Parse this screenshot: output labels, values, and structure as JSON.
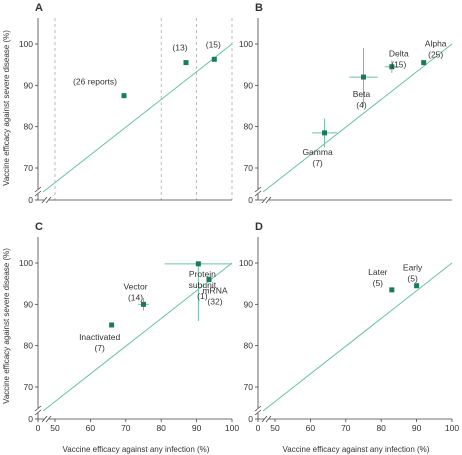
{
  "colors": {
    "marker": "#1a7a5a",
    "identity_line": "#6cc1a0",
    "axis": "#444444",
    "guide": "#aaaaaa",
    "errorbar": "#6cc1a0"
  },
  "axes": {
    "ylabel": "Vaccine efficacy against severe disease (%)",
    "xlabel": "Vaccine efficacy against any infection (%)",
    "yticks": [
      "0",
      "70",
      "80",
      "90",
      "100"
    ],
    "xticks": [
      "0",
      "50",
      "60",
      "70",
      "80",
      "90",
      "100"
    ]
  },
  "chart_data": [
    {
      "panel": "A",
      "type": "scatter",
      "xlim": [
        45,
        100
      ],
      "ylim": [
        60,
        100
      ],
      "vertical_guides": [
        50,
        80,
        90,
        100
      ],
      "points": [
        {
          "x": 69.5,
          "y": 87.5,
          "label": [
            "(26 reports)"
          ]
        },
        {
          "x": 87,
          "y": 95.5,
          "label": [
            "(13)"
          ]
        },
        {
          "x": 95,
          "y": 96.3,
          "label": [
            "(15)"
          ]
        }
      ]
    },
    {
      "panel": "B",
      "type": "scatter",
      "xlim": [
        45,
        100
      ],
      "ylim": [
        60,
        100
      ],
      "points": [
        {
          "x": 64,
          "y": 78.5,
          "xerr": [
            60.5,
            67.5
          ],
          "yerr": [
            75,
            82
          ],
          "label": [
            "Gamma",
            "(7)"
          ]
        },
        {
          "x": 75,
          "y": 92,
          "xerr": [
            71,
            79
          ],
          "yerr": [
            85,
            99
          ],
          "label": [
            "Beta",
            "(4)"
          ]
        },
        {
          "x": 83,
          "y": 94.5,
          "xerr": [
            81,
            85
          ],
          "yerr": [
            93,
            96
          ],
          "label": [
            "Delta",
            "(15)"
          ]
        },
        {
          "x": 92,
          "y": 95.5,
          "label": [
            "Alpha",
            "(25)"
          ]
        }
      ]
    },
    {
      "panel": "C",
      "type": "scatter",
      "xlim": [
        45,
        100
      ],
      "ylim": [
        60,
        100
      ],
      "points": [
        {
          "x": 66,
          "y": 85,
          "label": [
            "Inactivated",
            "(7)"
          ]
        },
        {
          "x": 75,
          "y": 90,
          "xerr": [
            73.5,
            76.5
          ],
          "yerr": [
            88.5,
            91.5
          ],
          "label": [
            "Vector",
            "(14)"
          ]
        },
        {
          "x": 90.5,
          "y": 99.8,
          "xerr": [
            81,
            100
          ],
          "yerr": [
            86,
            100
          ],
          "label": [
            "Protein",
            "subunit",
            "(1)"
          ]
        },
        {
          "x": 93.5,
          "y": 96,
          "label": [
            "mRNA",
            "(32)"
          ]
        }
      ]
    },
    {
      "panel": "D",
      "type": "scatter",
      "xlim": [
        45,
        100
      ],
      "ylim": [
        60,
        100
      ],
      "points": [
        {
          "x": 83,
          "y": 93.5,
          "label": [
            "Later",
            "(5)"
          ]
        },
        {
          "x": 90,
          "y": 94.5,
          "label": [
            "Early",
            "(5)"
          ]
        }
      ]
    }
  ]
}
